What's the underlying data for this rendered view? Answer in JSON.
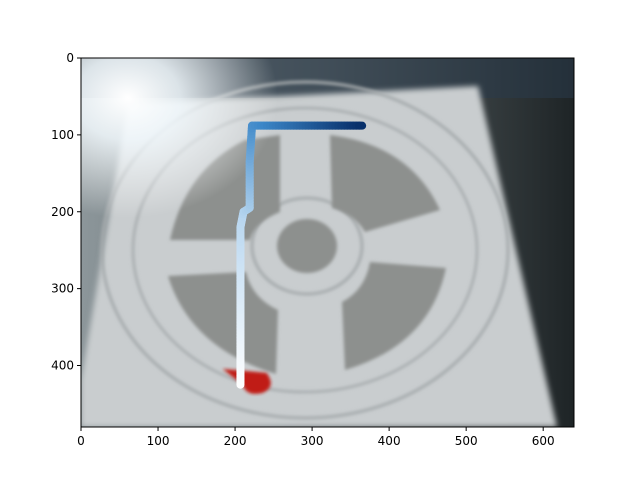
{
  "chart_data": {
    "type": "image",
    "title": "",
    "xlabel": "",
    "ylabel": "",
    "xlim": [
      0,
      640
    ],
    "ylim": [
      480,
      0
    ],
    "y_inverted": true,
    "grid": false,
    "x_ticks": [
      0,
      100,
      200,
      300,
      400,
      500,
      600
    ],
    "y_ticks": [
      0,
      100,
      200,
      300,
      400
    ],
    "background_image": "blurry photo of a circular paper target with four grey quadrant blocks, a central ring, bright light glare in the top-left corner, dark edge on the right, red arrow marker near bottom",
    "red_marker": {
      "x": 215,
      "y": 420
    },
    "path": {
      "x": [
        207,
        207,
        211,
        219,
        219,
        222,
        365
      ],
      "y": [
        425,
        220,
        200,
        195,
        135,
        88,
        88
      ],
      "colormap": "Blues",
      "start_color": "#ffffff",
      "end_color": "#08306b",
      "line_width": 8
    }
  }
}
